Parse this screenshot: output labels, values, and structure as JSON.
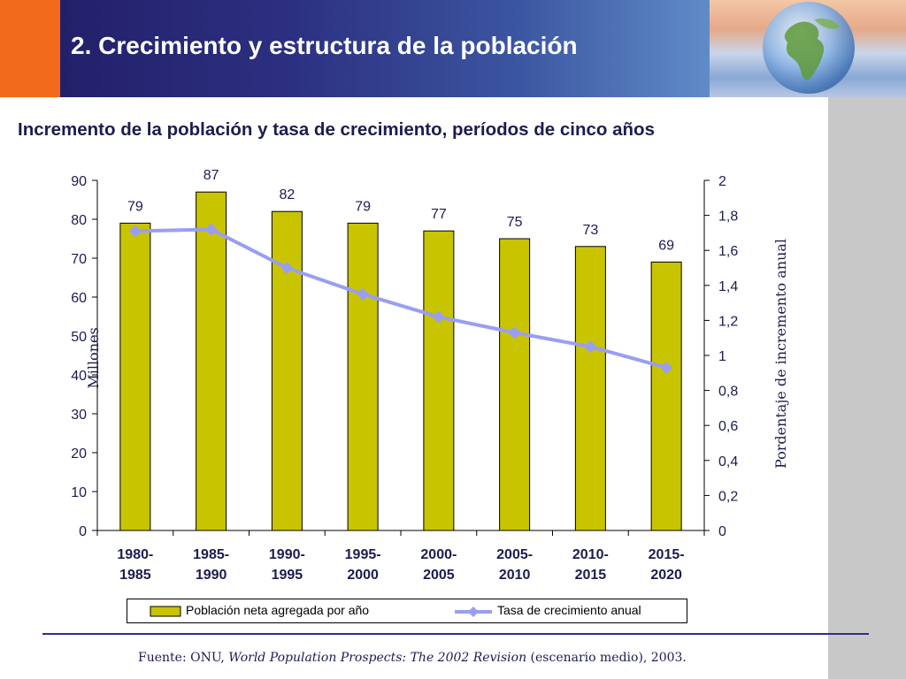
{
  "header": {
    "title": "2. Crecimiento y estructura de la población"
  },
  "subtitle": "Incremento de la población y tasa de crecimiento, períodos de cinco años",
  "colors": {
    "bar": "#c9c400",
    "line": "#9a9ef2",
    "header_dark": "#23206a",
    "accent_orange": "#f26b1d"
  },
  "icons": {
    "globe": "globe-icon"
  },
  "legend": {
    "bar_label": "Población neta agregada por año",
    "line_label": "Tasa de crecimiento anual"
  },
  "source": {
    "prefix": "Fuente: ONU, ",
    "italic": "World Population Prospects: The 2002 Revision",
    "suffix": " (escenario medio), 2003."
  },
  "chart_data": {
    "type": "bar",
    "categories": [
      [
        "1980-",
        "1985"
      ],
      [
        "1985-",
        "1990"
      ],
      [
        "1990-",
        "1995"
      ],
      [
        "1995-",
        "2000"
      ],
      [
        "2000-",
        "2005"
      ],
      [
        "2005-",
        "2010"
      ],
      [
        "2010-",
        "2015"
      ],
      [
        "2015-",
        "2020"
      ]
    ],
    "series": [
      {
        "name": "Población neta agregada por año",
        "type": "bar",
        "axis": "left",
        "values": [
          79,
          87,
          82,
          79,
          77,
          75,
          73,
          69
        ]
      },
      {
        "name": "Tasa de crecimiento anual",
        "type": "line",
        "axis": "right",
        "values": [
          1.71,
          1.72,
          1.5,
          1.35,
          1.22,
          1.13,
          1.05,
          0.93
        ]
      }
    ],
    "data_labels": [
      "79",
      "87",
      "82",
      "79",
      "77",
      "75",
      "73",
      "69"
    ],
    "ylabel": "Millones",
    "y2label": "Pordentaje de incremento anual",
    "ylim": [
      0,
      90
    ],
    "y2lim": [
      0,
      2
    ],
    "yticks": [
      "0",
      "10",
      "20",
      "30",
      "40",
      "50",
      "60",
      "70",
      "80",
      "90"
    ],
    "y2ticks": [
      "0",
      "0,2",
      "0,4",
      "0,6",
      "0,8",
      "1",
      "1,2",
      "1,4",
      "1,6",
      "1,8",
      "2"
    ],
    "grid": false,
    "legend_position": "bottom"
  }
}
